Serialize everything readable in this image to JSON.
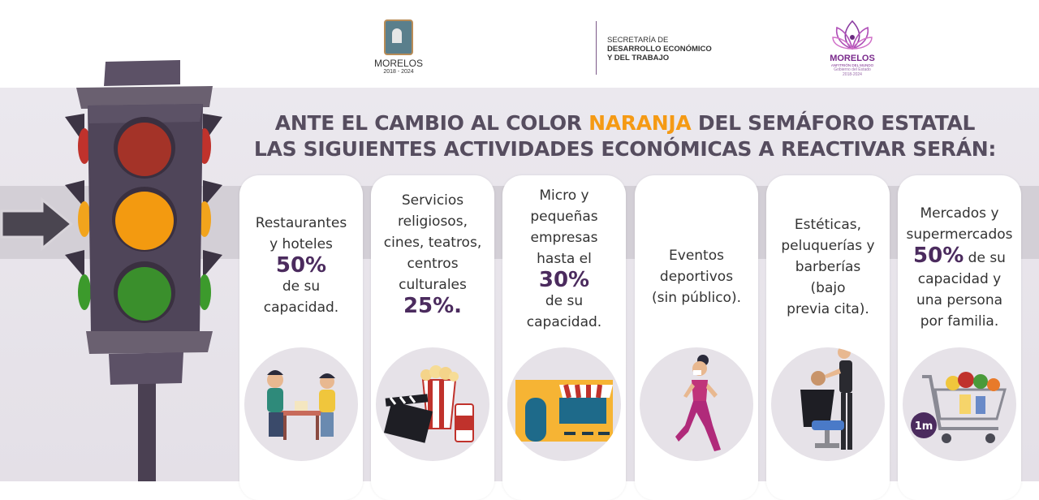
{
  "header": {
    "morelos_logo": {
      "name": "MORELOS",
      "years": "2018 - 2024"
    },
    "secretaria": [
      "SECRETARÍA DE",
      "DESARROLLO ECONÓMICO",
      "Y DEL TRABAJO"
    ],
    "government_logo": {
      "name": "MORELOS",
      "tagline": "ANFITRIÓN DEL MUNDO",
      "sub1": "Gobierno del Estado",
      "sub2": "2018-2024"
    }
  },
  "title": {
    "line1_before": "ANTE EL CAMBIO AL COLOR ",
    "line1_highlight": "NARANJA",
    "line1_after": " DEL SEMÁFORO ESTATAL",
    "line2": "LAS SIGUIENTES ACTIVIDADES ECONÓMICAS A REACTIVAR SERÁN:"
  },
  "cards": [
    {
      "lines": [
        "Restaurantes",
        "y hoteles"
      ],
      "pct": "50%",
      "after": [
        "de su",
        "capacidad."
      ],
      "icon": "people-at-table-icon"
    },
    {
      "lines": [
        "Servicios",
        "religiosos,",
        "cines, teatros,",
        "centros",
        "culturales"
      ],
      "pct": "25%.",
      "after": [],
      "icon": "popcorn-clapperboard-icon"
    },
    {
      "lines": [
        "Micro y",
        "pequeñas",
        "empresas",
        "hasta el"
      ],
      "pct": "30%",
      "after": [
        "de su",
        "capacidad."
      ],
      "icon": "storefront-icon"
    },
    {
      "lines": [
        "Eventos",
        "deportivos",
        "(sin público)."
      ],
      "pct": "",
      "after": [],
      "icon": "runner-icon"
    },
    {
      "lines": [
        "Estéticas,",
        "peluquerías y",
        "barberías",
        "(bajo",
        "previa cita)."
      ],
      "pct": "",
      "after": [],
      "icon": "barber-icon"
    },
    {
      "lines": [
        "Mercados y",
        "supermercados"
      ],
      "pct": "50%",
      "pct_suffix": " de su",
      "after": [
        "capacidad y",
        "una persona",
        "por familia."
      ],
      "icon": "shopping-cart-icon",
      "badge": "1m"
    }
  ],
  "colors": {
    "accent_orange": "#f59a14",
    "title_gray": "#564d5f",
    "percent_purple": "#4b2b5e",
    "light_red": "#b5322b",
    "light_amber": "#f39a10",
    "light_green": "#3a8f2c"
  }
}
